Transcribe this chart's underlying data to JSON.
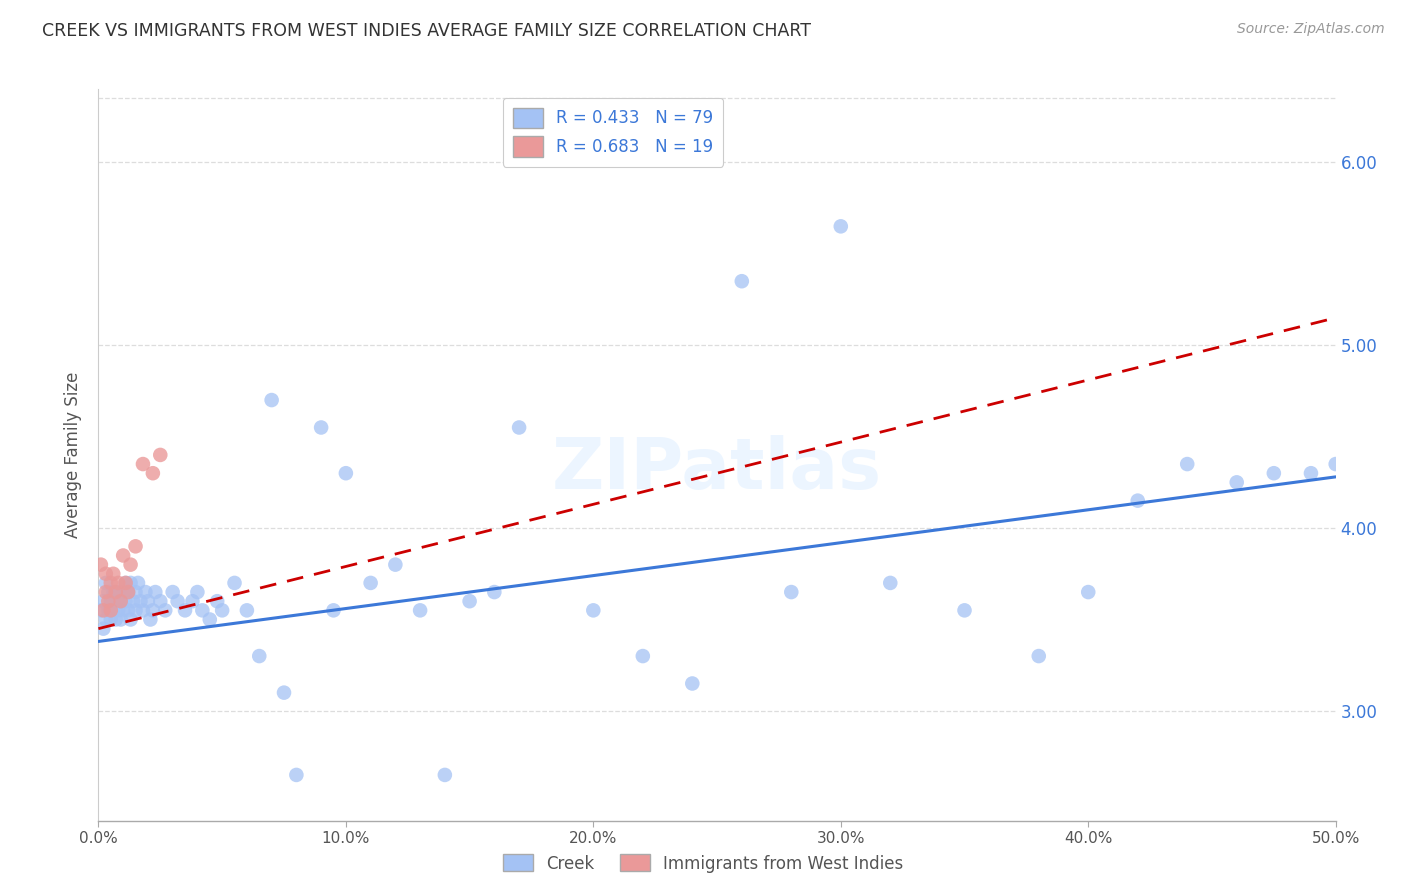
{
  "title": "CREEK VS IMMIGRANTS FROM WEST INDIES AVERAGE FAMILY SIZE CORRELATION CHART",
  "source": "Source: ZipAtlas.com",
  "ylabel": "Average Family Size",
  "xlim": [
    0.0,
    0.5
  ],
  "ylim": [
    2.4,
    6.4
  ],
  "xticks": [
    0.0,
    0.1,
    0.2,
    0.3,
    0.4,
    0.5
  ],
  "xticklabels": [
    "0.0%",
    "10.0%",
    "20.0%",
    "30.0%",
    "40.0%",
    "50.0%"
  ],
  "background_color": "#ffffff",
  "creek_color": "#a4c2f4",
  "creek_line_color": "#3c78d8",
  "wi_color": "#ea9999",
  "wi_line_color": "#cc0000",
  "creek_label": "Creek",
  "wi_label": "Immigrants from West Indies",
  "creek_R": 0.433,
  "creek_N": 79,
  "wi_R": 0.683,
  "wi_N": 19,
  "creek_x": [
    0.001,
    0.002,
    0.002,
    0.003,
    0.003,
    0.004,
    0.004,
    0.005,
    0.005,
    0.006,
    0.006,
    0.007,
    0.007,
    0.008,
    0.008,
    0.009,
    0.009,
    0.01,
    0.01,
    0.011,
    0.011,
    0.012,
    0.012,
    0.013,
    0.013,
    0.014,
    0.015,
    0.015,
    0.016,
    0.017,
    0.018,
    0.019,
    0.02,
    0.021,
    0.022,
    0.023,
    0.025,
    0.027,
    0.03,
    0.032,
    0.035,
    0.038,
    0.04,
    0.042,
    0.045,
    0.048,
    0.05,
    0.055,
    0.06,
    0.065,
    0.07,
    0.075,
    0.08,
    0.09,
    0.095,
    0.1,
    0.11,
    0.12,
    0.13,
    0.14,
    0.15,
    0.16,
    0.17,
    0.2,
    0.22,
    0.24,
    0.26,
    0.28,
    0.3,
    0.32,
    0.35,
    0.38,
    0.4,
    0.42,
    0.44,
    0.46,
    0.475,
    0.49,
    0.5
  ],
  "creek_y": [
    3.55,
    3.6,
    3.45,
    3.7,
    3.5,
    3.55,
    3.65,
    3.5,
    3.6,
    3.55,
    3.65,
    3.6,
    3.5,
    3.55,
    3.65,
    3.6,
    3.5,
    3.65,
    3.55,
    3.7,
    3.6,
    3.55,
    3.65,
    3.7,
    3.5,
    3.6,
    3.65,
    3.55,
    3.7,
    3.6,
    3.55,
    3.65,
    3.6,
    3.5,
    3.55,
    3.65,
    3.6,
    3.55,
    3.65,
    3.6,
    3.55,
    3.6,
    3.65,
    3.55,
    3.5,
    3.6,
    3.55,
    3.7,
    3.55,
    3.3,
    4.7,
    3.1,
    2.65,
    4.55,
    3.55,
    4.3,
    3.7,
    3.8,
    3.55,
    2.65,
    3.6,
    3.65,
    4.55,
    3.55,
    3.3,
    3.15,
    5.35,
    3.65,
    5.65,
    3.7,
    3.55,
    3.3,
    3.65,
    4.15,
    4.35,
    4.25,
    4.3,
    4.3,
    4.35
  ],
  "wi_x": [
    0.001,
    0.002,
    0.003,
    0.003,
    0.004,
    0.005,
    0.005,
    0.006,
    0.007,
    0.008,
    0.009,
    0.01,
    0.011,
    0.012,
    0.013,
    0.015,
    0.018,
    0.022,
    0.025
  ],
  "wi_y": [
    3.8,
    3.55,
    3.65,
    3.75,
    3.6,
    3.7,
    3.55,
    3.75,
    3.65,
    3.7,
    3.6,
    3.85,
    3.7,
    3.65,
    3.8,
    3.9,
    4.35,
    4.3,
    4.4
  ],
  "creek_line_x0": 0.0,
  "creek_line_y0": 3.38,
  "creek_line_x1": 0.5,
  "creek_line_y1": 4.28,
  "wi_line_x0": 0.0,
  "wi_line_y0": 3.45,
  "wi_line_x1": 0.5,
  "wi_line_y1": 5.15
}
